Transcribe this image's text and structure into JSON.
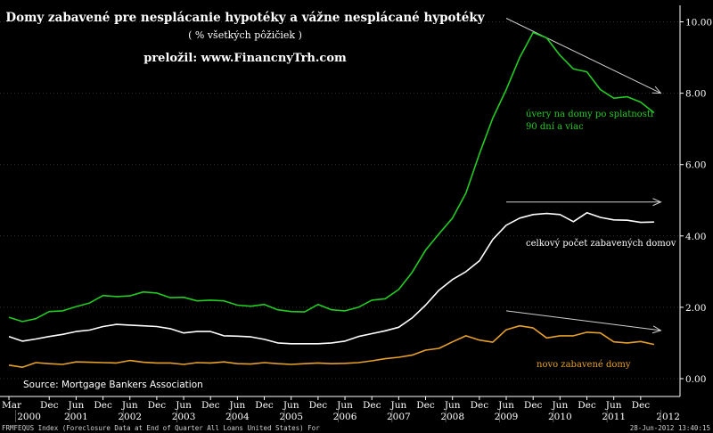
{
  "chart_data": {
    "type": "line",
    "title": "Domy zabavené pre nesplácanie hypotéky a vážne nesplácané hypotéky",
    "subtitle": "( % všetkých pôžičiek )",
    "translator": "preložil: www.FinancnyTrh.com",
    "source": "Source: Mortgage Bankers Association",
    "footer_left": "FRMFEQUS Index (Foreclosure Data at End of Quarter All Loans United States) For",
    "footer_right": "28-Jun-2012 13:40:15",
    "y_ticks": [
      "0.00",
      "2.00",
      "4.00",
      "6.00",
      "8.00",
      "10.00"
    ],
    "ylim": [
      -0.1,
      10.5
    ],
    "x_month_labels": [
      "Mar",
      "Dec",
      "Jun",
      "Dec",
      "Jun",
      "Dec",
      "Jun",
      "Dec",
      "Jun",
      "Dec",
      "Jun",
      "Dec",
      "Jun",
      "Dec",
      "Jun",
      "Dec",
      "Jun",
      "Dec",
      "Jun",
      "Dec",
      "Jun",
      "Dec",
      "Jun",
      "Dec"
    ],
    "x_month_quarters": [
      0,
      3,
      5,
      7,
      9,
      11,
      13,
      15,
      17,
      19,
      21,
      23,
      25,
      27,
      29,
      31,
      33,
      35,
      37,
      39,
      41,
      43,
      45,
      47
    ],
    "x_year_labels": [
      "2000",
      "2001",
      "2002",
      "2003",
      "2004",
      "2005",
      "2006",
      "2007",
      "2008",
      "2009",
      "2010",
      "2011",
      "2012"
    ],
    "x_year_quarters": [
      1.5,
      5,
      9,
      13,
      17,
      21,
      25,
      29,
      33,
      37,
      41,
      45,
      48.5
    ],
    "x_range_quarters": [
      0,
      49
    ],
    "series": [
      {
        "name": "úvery na domy po splatnosti 90 dní a viac",
        "color": "#22cc22",
        "values": [
          1.72,
          1.6,
          1.68,
          1.88,
          1.9,
          2.02,
          2.12,
          2.33,
          2.3,
          2.32,
          2.43,
          2.4,
          2.27,
          2.28,
          2.18,
          2.2,
          2.18,
          2.06,
          2.03,
          2.08,
          1.93,
          1.88,
          1.87,
          2.08,
          1.93,
          1.9,
          2.0,
          2.2,
          2.24,
          2.5,
          2.98,
          3.6,
          4.06,
          4.5,
          5.2,
          6.3,
          7.3,
          8.1,
          9.0,
          9.7,
          9.55,
          9.06,
          8.68,
          8.6,
          8.1,
          7.86,
          7.9,
          7.75,
          7.45
        ]
      },
      {
        "name": "celkový počet zabavených domov",
        "color": "#ffffff",
        "values": [
          1.18,
          1.05,
          1.11,
          1.18,
          1.24,
          1.32,
          1.36,
          1.46,
          1.52,
          1.5,
          1.48,
          1.46,
          1.4,
          1.28,
          1.32,
          1.32,
          1.2,
          1.19,
          1.17,
          1.1,
          1.0,
          0.98,
          0.98,
          0.98,
          1.0,
          1.05,
          1.18,
          1.26,
          1.34,
          1.44,
          1.7,
          2.06,
          2.48,
          2.78,
          3.0,
          3.3,
          3.9,
          4.3,
          4.5,
          4.6,
          4.63,
          4.6,
          4.4,
          4.65,
          4.52,
          4.45,
          4.44,
          4.38,
          4.39
        ]
      },
      {
        "name": "novo zabavené domy",
        "color": "#e6a12a",
        "values": [
          0.38,
          0.32,
          0.45,
          0.42,
          0.4,
          0.47,
          0.46,
          0.45,
          0.44,
          0.51,
          0.46,
          0.44,
          0.44,
          0.4,
          0.45,
          0.44,
          0.47,
          0.42,
          0.41,
          0.45,
          0.42,
          0.4,
          0.42,
          0.44,
          0.42,
          0.43,
          0.45,
          0.5,
          0.56,
          0.6,
          0.66,
          0.8,
          0.85,
          1.03,
          1.2,
          1.08,
          1.02,
          1.37,
          1.48,
          1.42,
          1.14,
          1.2,
          1.2,
          1.3,
          1.28,
          1.03,
          1.0,
          1.04,
          0.96
        ]
      }
    ],
    "series_labels": [
      {
        "lines": [
          "úvery na domy po splatnosti",
          "90 dní a viac"
        ],
        "color": "#22cc22"
      },
      {
        "lines": [
          "celkový počet zabavených domov"
        ],
        "color": "#ffffff"
      },
      {
        "lines": [
          "novo zabavené domy"
        ],
        "color": "#e6a12a"
      }
    ],
    "trend_arrows": [
      {
        "from": [
          37,
          10.1
        ],
        "to": [
          48.5,
          8.0
        ]
      },
      {
        "from": [
          37,
          4.95
        ],
        "to": [
          48.5,
          4.95
        ]
      },
      {
        "from": [
          37,
          1.9
        ],
        "to": [
          48.5,
          1.35
        ]
      }
    ],
    "colors": {
      "axis": "#ffffff",
      "grid": "#333333",
      "arrow": "#cfcfcf",
      "footer": "#cfcfcf"
    }
  }
}
